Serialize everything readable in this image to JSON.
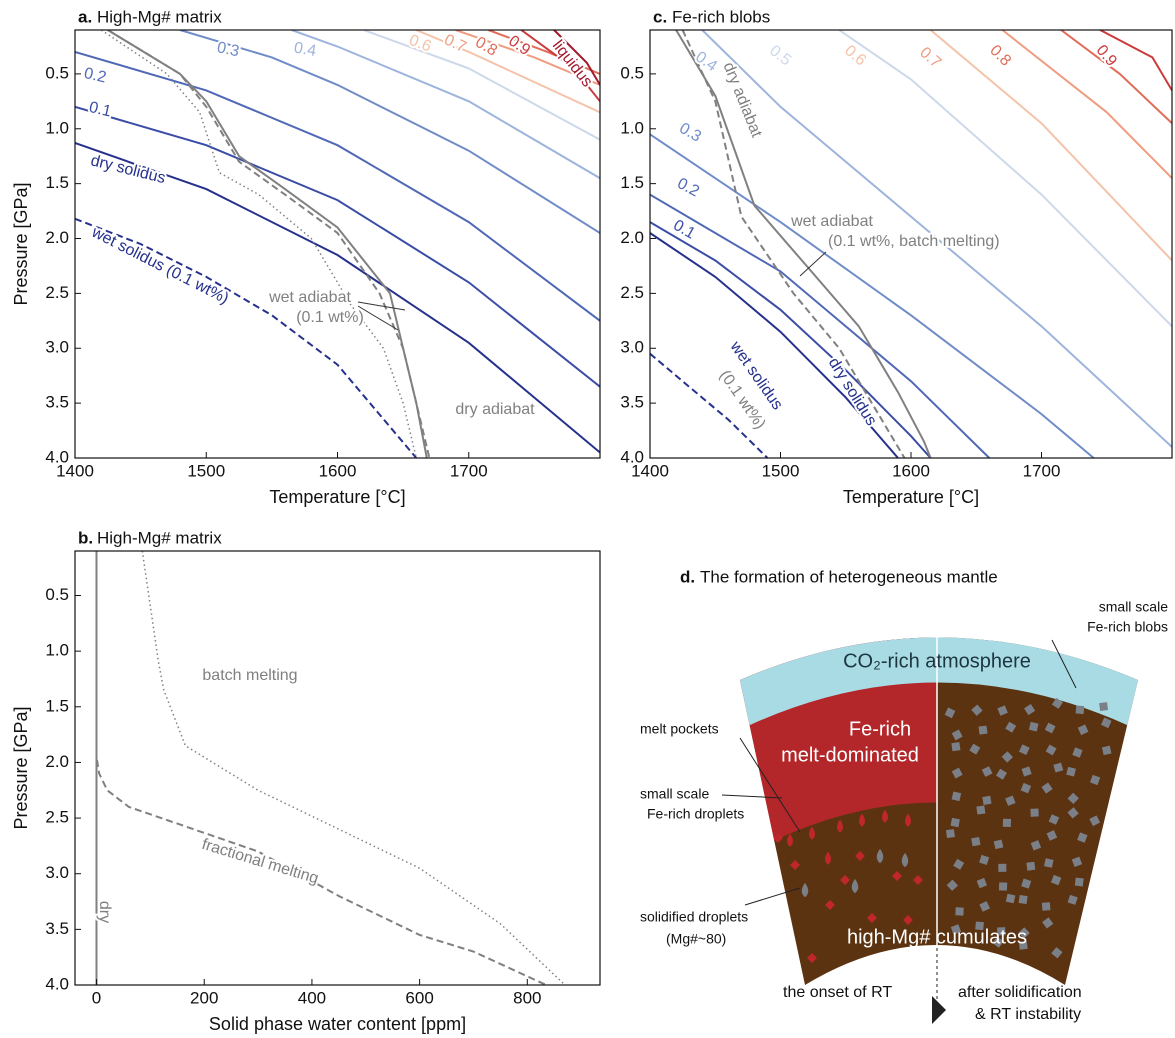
{
  "chart_data": [
    {
      "type": "line",
      "label": "a.",
      "title": "High-Mg# matrix",
      "xlabel": "Temperature [°C]",
      "ylabel": "Pressure [GPa]",
      "xlim": [
        1400,
        1800
      ],
      "ylim": [
        4.0,
        0.1
      ],
      "xticks": [
        1400,
        1500,
        1600,
        1700
      ],
      "yticks": [
        0.5,
        {
          "value": 1,
          "label": "1.0"
        },
        1.5,
        {
          "value": 2,
          "label": "2.0"
        },
        2.5,
        {
          "value": 3,
          "label": "3.0"
        },
        3.5,
        {
          "value": 4,
          "label": "4.0"
        }
      ],
      "series": [
        {
          "name": "dry solidus",
          "color": "#25318c",
          "dash": "solid",
          "x": [
            1400,
            1500,
            1600,
            1700,
            1800
          ],
          "y": [
            1.13,
            1.55,
            2.15,
            2.95,
            3.95
          ]
        },
        {
          "name": "0.1",
          "color": "#3a4ca6",
          "dash": "solid",
          "x": [
            1400,
            1500,
            1600,
            1700,
            1800
          ],
          "y": [
            0.8,
            1.15,
            1.65,
            2.4,
            3.35
          ]
        },
        {
          "name": "0.2",
          "color": "#5068b6",
          "dash": "solid",
          "x": [
            1400,
            1500,
            1600,
            1700,
            1800
          ],
          "y": [
            0.3,
            0.65,
            1.15,
            1.85,
            2.75
          ]
        },
        {
          "name": "0.3",
          "color": "#6f8cc8",
          "dash": "solid",
          "x": [
            1480,
            1550,
            1600,
            1700,
            1800
          ],
          "y": [
            0.1,
            0.35,
            0.6,
            1.2,
            1.95
          ]
        },
        {
          "name": "0.4",
          "color": "#9db4dc",
          "dash": "solid",
          "x": [
            1565,
            1600,
            1700,
            1800
          ],
          "y": [
            0.1,
            0.25,
            0.75,
            1.45
          ]
        },
        {
          "name": null,
          "color": "#cdd8ea",
          "dash": "solid",
          "x": [
            1620,
            1700,
            1800
          ],
          "y": [
            0.1,
            0.45,
            1.1
          ]
        },
        {
          "name": "0.6",
          "color": "#f4c3a9",
          "dash": "solid",
          "x": [
            1660,
            1700,
            1800
          ],
          "y": [
            0.1,
            0.3,
            0.85
          ]
        },
        {
          "name": "0.7",
          "color": "#ef9c80",
          "dash": "solid",
          "x": [
            1690,
            1750,
            1800
          ],
          "y": [
            0.1,
            0.35,
            0.6
          ]
        },
        {
          "name": "0.8",
          "color": "#e16c57",
          "dash": "solid",
          "x": [
            1715,
            1760,
            1800
          ],
          "y": [
            0.1,
            0.3,
            0.5
          ]
        },
        {
          "name": "0.9",
          "color": "#cb3a3c",
          "dash": "solid",
          "x": [
            1740,
            1780,
            1800
          ],
          "y": [
            0.1,
            0.45,
            0.75
          ]
        },
        {
          "name": "liquidus",
          "color": "#a3192c",
          "dash": "solid",
          "x": [
            1765,
            1790,
            1800
          ],
          "y": [
            0.1,
            0.4,
            0.6
          ]
        },
        {
          "name": "wet solidus (0.1 wt%)",
          "color": "#25318c",
          "dash": "dashed",
          "x": [
            1400,
            1450,
            1500,
            1550,
            1600,
            1660
          ],
          "y": [
            1.82,
            2.05,
            2.35,
            2.7,
            3.15,
            4.0
          ]
        },
        {
          "name": "dry adiabat",
          "color": "#808080",
          "dash": "solid",
          "x": [
            1425,
            1480,
            1500,
            1525,
            1560,
            1600,
            1640,
            1650,
            1660,
            1668
          ],
          "y": [
            0.1,
            0.5,
            0.75,
            1.25,
            1.55,
            1.9,
            2.5,
            3.0,
            3.5,
            4.0
          ]
        },
        {
          "name": null,
          "color": "#808080",
          "dash": "dashed",
          "x": [
            1425,
            1480,
            1500,
            1525,
            1560,
            1600,
            1632,
            1650,
            1660,
            1670
          ],
          "y": [
            0.1,
            0.5,
            0.8,
            1.3,
            1.6,
            1.95,
            2.5,
            3.0,
            3.5,
            4.0
          ]
        },
        {
          "name": null,
          "color": "#808080",
          "dash": "dotted",
          "x": [
            1420,
            1470,
            1495,
            1510,
            1540,
            1580,
            1610,
            1635,
            1650,
            1660
          ],
          "y": [
            0.1,
            0.5,
            0.85,
            1.4,
            1.6,
            2.0,
            2.6,
            3.0,
            3.5,
            4.0
          ]
        }
      ],
      "annotations": [
        "wet adiabat",
        "(0.1 wt%)"
      ]
    },
    {
      "type": "line",
      "label": "b.",
      "title": "High-Mg# matrix",
      "xlabel": "Solid phase water content [ppm]",
      "ylabel": "Pressure [GPa]",
      "xlim": [
        -40,
        935
      ],
      "ylim": [
        4.0,
        0.1
      ],
      "xticks": [
        0,
        200,
        400,
        600,
        800
      ],
      "yticks": [
        0.5,
        {
          "value": 1,
          "label": "1.0"
        },
        1.5,
        {
          "value": 2,
          "label": "2.0"
        },
        2.5,
        {
          "value": 3,
          "label": "3.0"
        },
        3.5,
        {
          "value": 4,
          "label": "4.0"
        }
      ],
      "series": [
        {
          "name": "dry",
          "color": "#808080",
          "dash": "solid",
          "x": [
            0,
            0
          ],
          "y": [
            0.1,
            4.0
          ]
        },
        {
          "name": "batch melting",
          "color": "#808080",
          "dash": "dotted",
          "x": [
            85,
            100,
            115,
            125,
            165,
            300,
            450,
            600,
            750,
            870
          ],
          "y": [
            0.1,
            0.6,
            1.1,
            1.35,
            1.85,
            2.25,
            2.6,
            2.95,
            3.45,
            4.0
          ]
        },
        {
          "name": "fractional melting",
          "color": "#808080",
          "dash": "dashed",
          "x": [
            0,
            0,
            5,
            20,
            60,
            150,
            300,
            450,
            600,
            700,
            835
          ],
          "y": [
            0.1,
            1.95,
            2.1,
            2.25,
            2.4,
            2.55,
            2.8,
            3.2,
            3.55,
            3.7,
            4.0
          ]
        }
      ],
      "annotations": []
    },
    {
      "type": "line",
      "label": "c.",
      "title": "Fe-rich blobs",
      "xlabel": "Temperature [°C]",
      "ylabel": null,
      "xlim": [
        1400,
        1800
      ],
      "ylim": [
        4.0,
        0.1
      ],
      "xticks": [
        1400,
        1500,
        1600,
        1700
      ],
      "yticks": [
        0.5,
        {
          "value": 1,
          "label": "1.0"
        },
        1.5,
        {
          "value": 2,
          "label": "2.0"
        },
        2.5,
        {
          "value": 3,
          "label": "3.0"
        },
        3.5,
        {
          "value": 4,
          "label": "4.0"
        }
      ],
      "series": [
        {
          "name": "dry solidus",
          "color": "#25318c",
          "dash": "solid",
          "x": [
            1400,
            1450,
            1500,
            1550,
            1590
          ],
          "y": [
            1.95,
            2.35,
            2.85,
            3.45,
            4.0
          ]
        },
        {
          "name": "0.1",
          "color": "#3a4ca6",
          "dash": "solid",
          "x": [
            1400,
            1450,
            1500,
            1550,
            1600,
            1615
          ],
          "y": [
            1.85,
            2.2,
            2.65,
            3.2,
            3.8,
            4.0
          ]
        },
        {
          "name": "0.2",
          "color": "#5068b6",
          "dash": "solid",
          "x": [
            1400,
            1500,
            1600,
            1660
          ],
          "y": [
            1.6,
            2.3,
            3.3,
            4.0
          ]
        },
        {
          "name": "0.3",
          "color": "#6f8cc8",
          "dash": "solid",
          "x": [
            1400,
            1500,
            1600,
            1700,
            1740
          ],
          "y": [
            1.05,
            1.85,
            2.7,
            3.6,
            4.0
          ]
        },
        {
          "name": "0.4",
          "color": "#9db4dc",
          "dash": "solid",
          "x": [
            1440,
            1500,
            1600,
            1700,
            1800
          ],
          "y": [
            0.1,
            0.8,
            1.8,
            2.8,
            3.9
          ]
        },
        {
          "name": "0.5",
          "color": "#cdd8ea",
          "dash": "solid",
          "x": [
            1545,
            1600,
            1700,
            1800
          ],
          "y": [
            0.1,
            0.55,
            1.6,
            2.8
          ]
        },
        {
          "name": "0.6",
          "color": "#f4c3a9",
          "dash": "solid",
          "x": [
            1615,
            1700,
            1800
          ],
          "y": [
            0.1,
            0.95,
            2.2
          ]
        },
        {
          "name": "0.7",
          "color": "#ef9c80",
          "dash": "solid",
          "x": [
            1670,
            1750,
            1800
          ],
          "y": [
            0.1,
            0.85,
            1.45
          ]
        },
        {
          "name": "0.8",
          "color": "#e16c57",
          "dash": "solid",
          "x": [
            1715,
            1760,
            1800
          ],
          "y": [
            0.1,
            0.5,
            0.95
          ]
        },
        {
          "name": "0.9",
          "color": "#cb3a3c",
          "dash": "solid",
          "x": [
            1745,
            1785,
            1800
          ],
          "y": [
            0.1,
            0.35,
            0.65
          ]
        },
        {
          "name": "wet solidus",
          "color": "#25318c",
          "dash": "dashed",
          "x": [
            1400,
            1430,
            1460,
            1490
          ],
          "y": [
            3.05,
            3.35,
            3.65,
            4.0
          ]
        },
        {
          "name": "dry adiabat",
          "color": "#808080",
          "dash": "solid",
          "x": [
            1420,
            1450,
            1480,
            1520,
            1560,
            1590,
            1610,
            1615
          ],
          "y": [
            0.1,
            0.7,
            1.7,
            2.25,
            2.8,
            3.4,
            3.85,
            4.0
          ]
        },
        {
          "name": null,
          "color": "#808080",
          "dash": "dashed",
          "x": [
            1425,
            1450,
            1470,
            1510,
            1545,
            1575,
            1595
          ],
          "y": [
            0.1,
            0.75,
            1.8,
            2.5,
            3.0,
            3.6,
            4.0
          ]
        }
      ],
      "annotations": [
        "(0.1 wt%)",
        "wet adiabat",
        "(0.1 wt%, batch melting)"
      ]
    }
  ],
  "diagram": {
    "label": "d.",
    "title": "The formation of heterogeneous mantle",
    "atmosphere": "CO₂-rich atmosphere",
    "melt_1": "Fe-rich",
    "melt_2": "melt-dominated",
    "cumulates": "high-Mg# cumulates",
    "blobs_1": "small scale",
    "blobs_2": "Fe-rich blobs",
    "pockets": "melt pockets",
    "droplets_1": "small scale",
    "droplets_2": "Fe-rich droplets",
    "solidified_1": "solidified droplets",
    "solidified_2": "(Mg#~80)",
    "onset": "the onset of RT",
    "after_1": "after solidification",
    "after_2": "& RT instability"
  }
}
